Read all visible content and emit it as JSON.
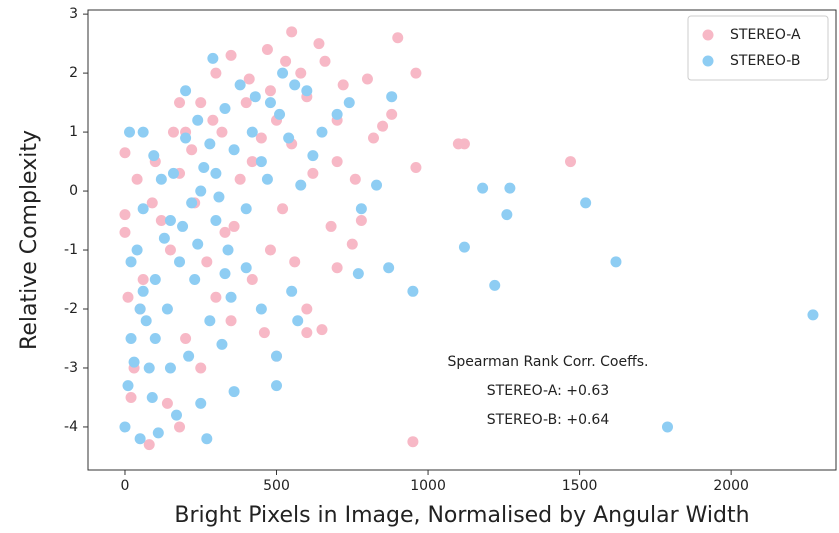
{
  "chart_data": {
    "type": "scatter",
    "x_label": "Bright Pixels in Image, Normalised by Angular Width",
    "y_label": "Relative Complexity",
    "annotations": [
      "Spearman Rank Corr. Coeffs.",
      "STEREO-A: +0.63",
      "STEREO-B: +0.64"
    ],
    "xlim": [
      -122,
      2346
    ],
    "ylim": [
      -4.73,
      3.07
    ],
    "xticks": [
      0,
      500,
      1000,
      1500,
      2000
    ],
    "yticks": [
      -4,
      -3,
      -2,
      -1,
      0,
      1,
      2,
      3
    ],
    "grid": false,
    "legend": "upper right",
    "series": [
      {
        "name": "STEREO-A",
        "color": "#f7b8c6",
        "x": [
          950,
          1470,
          1100,
          1120,
          900,
          800,
          960,
          960,
          850,
          700,
          650,
          550,
          470,
          0,
          0,
          0,
          80,
          180,
          500,
          600,
          750,
          700,
          400,
          300,
          200,
          100,
          150,
          50,
          250,
          330,
          420,
          520,
          620,
          550,
          480,
          350,
          250,
          180,
          120,
          60,
          30,
          200,
          300,
          380,
          450,
          600,
          660,
          720,
          820,
          780,
          680,
          560,
          460,
          350,
          270,
          220,
          160,
          90,
          40,
          10,
          20,
          140,
          230,
          320,
          420,
          500,
          580,
          640,
          530,
          410,
          290,
          180,
          360,
          480,
          600,
          700,
          880,
          760
        ],
        "values": [
          -4.25,
          0.5,
          0.8,
          0.8,
          2.6,
          1.9,
          0.4,
          2.0,
          1.1,
          1.2,
          -2.35,
          2.7,
          2.4,
          0.65,
          -0.4,
          -0.7,
          -4.3,
          -4.0,
          -2.8,
          -2.0,
          -0.9,
          0.5,
          1.5,
          2.0,
          1.0,
          0.5,
          -1.0,
          -2.0,
          -3.0,
          -0.7,
          -1.5,
          -0.3,
          0.3,
          0.8,
          1.7,
          2.3,
          1.5,
          0.3,
          -0.5,
          -1.5,
          -3.0,
          -2.5,
          -1.8,
          0.2,
          0.9,
          1.6,
          2.2,
          1.8,
          0.9,
          -0.5,
          -0.6,
          -1.2,
          -2.4,
          -2.2,
          -1.2,
          0.7,
          1.0,
          -0.2,
          0.2,
          -1.8,
          -3.5,
          -3.6,
          -0.2,
          1.0,
          0.5,
          1.2,
          2.0,
          2.5,
          2.2,
          1.9,
          1.2,
          1.5,
          -0.6,
          -1.0,
          -2.4,
          -1.3,
          1.3,
          0.2
        ]
      },
      {
        "name": "STEREO-B",
        "color": "#8ecdf3",
        "x": [
          2270,
          1790,
          1620,
          1520,
          1270,
          1180,
          1260,
          1220,
          1120,
          950,
          870,
          770,
          830,
          780,
          270,
          0,
          50,
          290,
          520,
          880,
          740,
          700,
          600,
          500,
          360,
          500,
          570,
          320,
          250,
          150,
          100,
          50,
          20,
          10,
          30,
          60,
          100,
          130,
          160,
          200,
          240,
          260,
          300,
          340,
          400,
          450,
          480,
          420,
          380,
          330,
          280,
          220,
          180,
          140,
          90,
          70,
          40,
          120,
          15,
          60,
          200,
          250,
          300,
          350,
          450,
          550,
          620,
          650,
          580,
          540,
          470,
          400,
          280,
          210,
          170,
          110,
          80,
          60,
          20,
          190,
          230,
          310,
          360,
          430,
          510,
          560,
          330,
          240,
          150,
          95
        ],
        "values": [
          -2.1,
          -4.0,
          -1.2,
          -0.2,
          0.05,
          0.05,
          -0.4,
          -1.6,
          -0.95,
          -1.7,
          -1.3,
          -1.4,
          0.1,
          -0.3,
          -4.2,
          -4.0,
          -4.2,
          2.25,
          2.0,
          1.6,
          1.5,
          1.3,
          1.7,
          -3.3,
          -3.4,
          -2.8,
          -2.2,
          -2.6,
          -3.6,
          -3.0,
          -2.5,
          -2.0,
          -1.2,
          -3.3,
          -2.9,
          -0.3,
          -1.5,
          -0.8,
          0.3,
          0.9,
          1.2,
          0.4,
          -0.5,
          -1.0,
          -0.3,
          0.5,
          1.5,
          1.0,
          1.8,
          1.4,
          0.8,
          -0.2,
          -1.2,
          -2.0,
          -3.5,
          -2.2,
          -1.0,
          0.2,
          1.0,
          1.0,
          1.7,
          0.0,
          0.3,
          -1.8,
          -2.0,
          -1.7,
          0.6,
          1.0,
          0.1,
          0.9,
          0.2,
          -1.3,
          -2.2,
          -2.8,
          -3.8,
          -4.1,
          -3.0,
          -1.7,
          -2.5,
          -0.6,
          -1.5,
          -0.1,
          0.7,
          1.6,
          1.3,
          1.8,
          -1.4,
          -0.9,
          -0.5,
          0.6
        ]
      }
    ]
  }
}
